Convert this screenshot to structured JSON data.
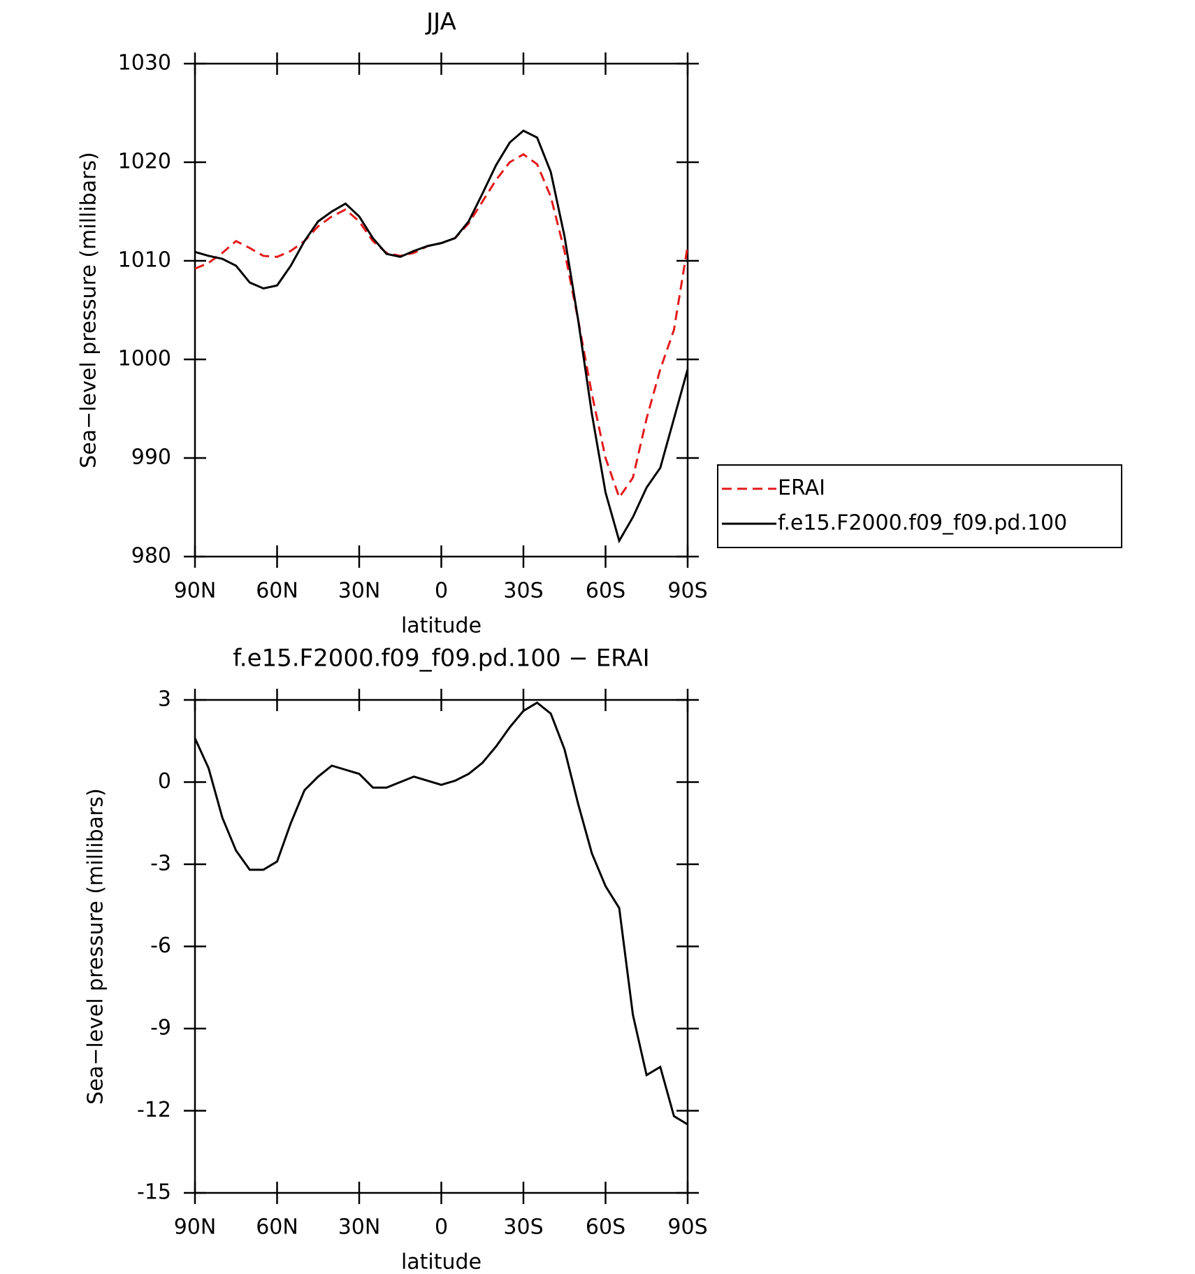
{
  "chart_data": [
    {
      "type": "line",
      "title": "JJA",
      "xlabel": "latitude",
      "ylabel": "Sea−level pressure (millibars)",
      "x": [
        90,
        85,
        80,
        75,
        70,
        65,
        60,
        55,
        50,
        45,
        40,
        35,
        30,
        25,
        20,
        15,
        10,
        5,
        0,
        -5,
        -10,
        -15,
        -20,
        -25,
        -30,
        -35,
        -40,
        -45,
        -50,
        -55,
        -60,
        -65,
        -70,
        -75,
        -80,
        -85,
        -90
      ],
      "series": [
        {
          "name": "ERAI",
          "color": "#e31a1c",
          "line_style": "dashed",
          "values": [
            1009.2,
            1009.8,
            1010.8,
            1012,
            1011.3,
            1010.5,
            1010.4,
            1011,
            1012,
            1013.5,
            1014.5,
            1015.2,
            1014,
            1012,
            1010.8,
            1010.5,
            1010.8,
            1011.5,
            1011.8,
            1012.3,
            1013.8,
            1016,
            1018.2,
            1020,
            1020.8,
            1019.8,
            1016.5,
            1011,
            1004,
            996.5,
            990,
            986,
            988,
            994,
            999,
            1003,
            1011.5
          ]
        },
        {
          "name": "f.e15.F2000.f09_f09.pd.100",
          "color": "#000000",
          "line_style": "solid",
          "values": [
            1010.9,
            1010.5,
            1010.2,
            1009.5,
            1007.8,
            1007.2,
            1007.5,
            1009.5,
            1012,
            1014,
            1015,
            1015.8,
            1014.5,
            1012.3,
            1010.7,
            1010.4,
            1011,
            1011.5,
            1011.8,
            1012.3,
            1014,
            1016.8,
            1019.7,
            1022,
            1023.2,
            1022.5,
            1019,
            1012.5,
            1004,
            994.5,
            986.5,
            981.6,
            984,
            987,
            989,
            994,
            999
          ]
        }
      ],
      "xlim": [
        90,
        -90
      ],
      "xticks": [
        {
          "value": 90,
          "label": "90N"
        },
        {
          "value": 60,
          "label": "60N"
        },
        {
          "value": 30,
          "label": "30N"
        },
        0,
        {
          "value": -30,
          "label": "30S"
        },
        {
          "value": -60,
          "label": "60S"
        },
        {
          "value": -90,
          "label": "90S"
        }
      ],
      "ylim": [
        980,
        1030
      ],
      "yticks": [
        980,
        990,
        1000,
        1010,
        1020,
        1030
      ],
      "legend": "right"
    },
    {
      "type": "line",
      "title": "f.e15.F2000.f09_f09.pd.100 − ERAI",
      "xlabel": "latitude",
      "ylabel": "Sea−level pressure (millibars)",
      "x": [
        90,
        85,
        80,
        75,
        70,
        65,
        60,
        55,
        50,
        45,
        40,
        35,
        30,
        25,
        20,
        15,
        10,
        5,
        0,
        -5,
        -10,
        -15,
        -20,
        -25,
        -30,
        -35,
        -40,
        -45,
        -50,
        -55,
        -60,
        -65,
        -70,
        -75,
        -80,
        -85,
        -90
      ],
      "series": [
        {
          "color": "#000000",
          "line_style": "solid",
          "values": [
            1.6,
            0.5,
            -1.3,
            -2.5,
            -3.2,
            -3.2,
            -2.9,
            -1.5,
            -0.3,
            0.2,
            0.6,
            0.45,
            0.3,
            -0.2,
            -0.2,
            0,
            0.2,
            0.05,
            -0.1,
            0.05,
            0.3,
            0.7,
            1.3,
            2,
            2.6,
            2.9,
            2.5,
            1.2,
            -0.8,
            -2.6,
            -3.8,
            -4.6,
            -8.5,
            -10.7,
            -10.4,
            -12.2,
            -12.5
          ]
        }
      ],
      "xlim": [
        90,
        -90
      ],
      "xticks": [
        {
          "value": 90,
          "label": "90N"
        },
        {
          "value": 60,
          "label": "60N"
        },
        {
          "value": 30,
          "label": "30N"
        },
        0,
        {
          "value": -30,
          "label": "30S"
        },
        {
          "value": -60,
          "label": "60S"
        },
        {
          "value": -90,
          "label": "90S"
        }
      ],
      "ylim": [
        -15,
        3
      ],
      "yticks": [
        -15,
        -12,
        -9,
        -6,
        -3,
        0,
        3
      ]
    }
  ]
}
